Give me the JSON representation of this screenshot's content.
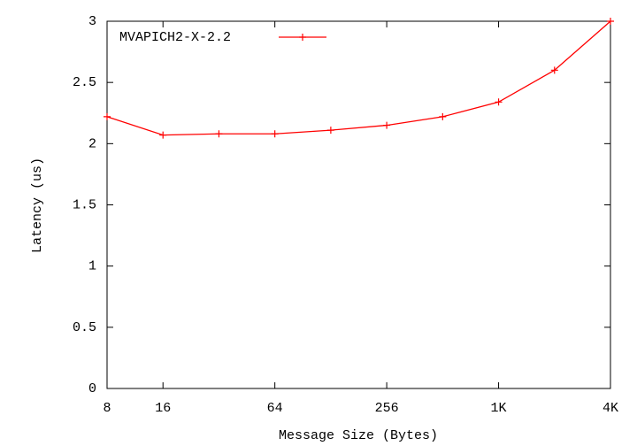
{
  "chart_data": {
    "type": "line",
    "x_label": "Message Size (Bytes)",
    "y_label": "Latency (us)",
    "x": [
      8,
      16,
      32,
      64,
      128,
      256,
      512,
      1024,
      2048,
      4096
    ],
    "series": [
      {
        "name": "MVAPICH2-X-2.2",
        "color": "#ff0000",
        "values": [
          2.22,
          2.07,
          2.08,
          2.08,
          2.11,
          2.15,
          2.22,
          2.34,
          2.6,
          3.0
        ]
      }
    ],
    "x_log_base": 2,
    "xlim": [
      8,
      4096
    ],
    "xticks": [
      8,
      16,
      64,
      256,
      {
        "value": 1024,
        "label": "1K"
      },
      {
        "value": 4096,
        "label": "4K"
      }
    ],
    "ylim": [
      0,
      3
    ],
    "yticks": [
      0,
      0.5,
      1,
      1.5,
      2,
      2.5,
      3
    ],
    "grid": false,
    "legend": "top-left"
  }
}
